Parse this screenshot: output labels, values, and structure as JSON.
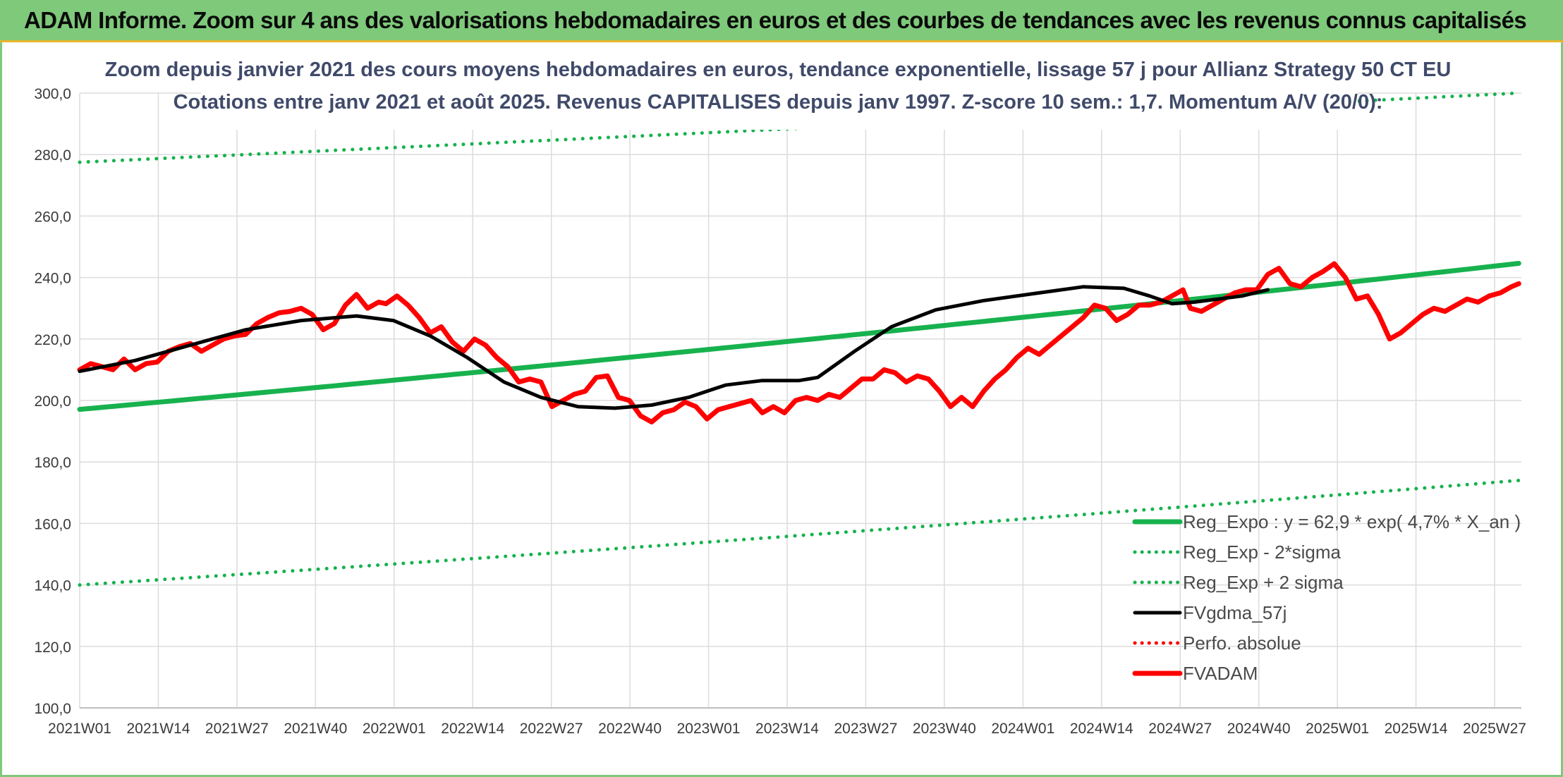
{
  "banner": {
    "title": "ADAM Informe. Zoom sur 4 ans des valorisations hebdomadaires en euros et des courbes de tendances avec les revenus connus capitalisés"
  },
  "chart_data": {
    "type": "line",
    "title": "Zoom depuis janvier 2021 des cours moyens hebdomadaires en euros, tendance exponentielle, lissage 57 j pour Allianz Strategy 50 CT EU",
    "subtitle": "Cotations entre janv 2021 et août 2025. Revenus CAPITALISES depuis janv 1997. Z-score 10 sem.: 1,7. Momentum A/V (20/0):",
    "xlabel": "",
    "ylabel": "",
    "ylim": [
      100,
      300
    ],
    "y_ticks": [
      "100,0",
      "120,0",
      "140,0",
      "160,0",
      "180,0",
      "200,0",
      "220,0",
      "240,0",
      "260,0",
      "280,0",
      "300,0"
    ],
    "x_ticks": [
      "2021W01",
      "2021W14",
      "2021W27",
      "2021W40",
      "2022W01",
      "2022W14",
      "2022W27",
      "2022W40",
      "2023W01",
      "2023W14",
      "2023W27",
      "2023W40",
      "2024W01",
      "2024W14",
      "2024W27",
      "2024W40",
      "2025W01",
      "2025W14",
      "2025W27"
    ],
    "weeks": 240,
    "grid": true,
    "legend_position": "bottom-right",
    "series": [
      {
        "name": "Reg_Expo : y = 62,9 * exp( 4,7% *  X_an )",
        "color": "#17b24e",
        "style": "solid-thick",
        "start": 197.1,
        "end": 244.6
      },
      {
        "name": "Reg_Exp - 2*sigma",
        "color": "#17b24e",
        "style": "dotted",
        "start": 140.0,
        "end": 174.0
      },
      {
        "name": "Reg_Exp + 2 sigma",
        "color": "#17b24e",
        "style": "dotted",
        "start": 277.5,
        "end": 300.0
      },
      {
        "name": "FVgdma_57j",
        "color": "#000000",
        "style": "solid",
        "keypoints": [
          [
            0,
            209.5
          ],
          [
            15,
            213
          ],
          [
            30,
            218
          ],
          [
            45,
            223
          ],
          [
            60,
            226
          ],
          [
            75,
            227.5
          ],
          [
            85,
            226
          ],
          [
            95,
            221
          ],
          [
            105,
            214
          ],
          [
            115,
            206
          ],
          [
            125,
            201
          ],
          [
            135,
            198
          ],
          [
            145,
            197.5
          ],
          [
            155,
            198.5
          ],
          [
            165,
            201
          ],
          [
            175,
            205
          ],
          [
            185,
            206.5
          ],
          [
            195,
            206.5
          ],
          [
            200,
            207.5
          ],
          [
            210,
            216
          ],
          [
            220,
            224
          ],
          [
            232,
            229.5
          ],
          [
            245,
            232.5
          ],
          [
            260,
            235
          ],
          [
            272,
            237
          ],
          [
            283,
            236.5
          ],
          [
            290,
            234
          ],
          [
            296,
            231.5
          ],
          [
            302,
            232
          ],
          [
            315,
            234
          ],
          [
            322,
            236
          ]
        ]
      },
      {
        "name": "Perfo. absolue",
        "color": "#ff0000",
        "style": "dotted",
        "keypoints": []
      },
      {
        "name": "FVADAM",
        "color": "#ff0000",
        "style": "solid-thick",
        "keypoints": [
          [
            0,
            210
          ],
          [
            3,
            212
          ],
          [
            6,
            211
          ],
          [
            9,
            210
          ],
          [
            12,
            213.5
          ],
          [
            15,
            210
          ],
          [
            18,
            212
          ],
          [
            21,
            212.5
          ],
          [
            24,
            216
          ],
          [
            27,
            217.5
          ],
          [
            30,
            218.5
          ],
          [
            33,
            216
          ],
          [
            36,
            218
          ],
          [
            39,
            220
          ],
          [
            42,
            221
          ],
          [
            45,
            221.5
          ],
          [
            48,
            225
          ],
          [
            51,
            227
          ],
          [
            54,
            228.5
          ],
          [
            57,
            229
          ],
          [
            60,
            230
          ],
          [
            63,
            228
          ],
          [
            66,
            223
          ],
          [
            69,
            225
          ],
          [
            72,
            231
          ],
          [
            75,
            234.5
          ],
          [
            78,
            230
          ],
          [
            81,
            232
          ],
          [
            83,
            231.5
          ],
          [
            86,
            234
          ],
          [
            89,
            231
          ],
          [
            92,
            227
          ],
          [
            95,
            222
          ],
          [
            98,
            224
          ],
          [
            101,
            219
          ],
          [
            104,
            216
          ],
          [
            107,
            220
          ],
          [
            110,
            218
          ],
          [
            113,
            214
          ],
          [
            116,
            211
          ],
          [
            119,
            206
          ],
          [
            122,
            207
          ],
          [
            125,
            206
          ],
          [
            128,
            198
          ],
          [
            131,
            200
          ],
          [
            134,
            202
          ],
          [
            137,
            203
          ],
          [
            140,
            207.5
          ],
          [
            143,
            208
          ],
          [
            146,
            201
          ],
          [
            149,
            200
          ],
          [
            152,
            195
          ],
          [
            155,
            193
          ],
          [
            158,
            196
          ],
          [
            161,
            197
          ],
          [
            164,
            199.5
          ],
          [
            167,
            198
          ],
          [
            170,
            194
          ],
          [
            173,
            197
          ],
          [
            176,
            198
          ],
          [
            179,
            199
          ],
          [
            182,
            200
          ],
          [
            185,
            196
          ],
          [
            188,
            198
          ],
          [
            191,
            196
          ],
          [
            194,
            200
          ],
          [
            197,
            201
          ],
          [
            200,
            200
          ],
          [
            203,
            202
          ],
          [
            206,
            201
          ],
          [
            209,
            204
          ],
          [
            212,
            207
          ],
          [
            215,
            207
          ],
          [
            218,
            210
          ],
          [
            221,
            209
          ],
          [
            224,
            206
          ],
          [
            227,
            208
          ],
          [
            230,
            207
          ],
          [
            233,
            203
          ],
          [
            236,
            198
          ],
          [
            239,
            201
          ],
          [
            242,
            198
          ],
          [
            245,
            203
          ],
          [
            248,
            207
          ],
          [
            251,
            210
          ],
          [
            254,
            214
          ],
          [
            257,
            217
          ],
          [
            260,
            215
          ],
          [
            263,
            218
          ],
          [
            266,
            221
          ],
          [
            269,
            224
          ],
          [
            272,
            227
          ],
          [
            275,
            231
          ],
          [
            278,
            230
          ],
          [
            281,
            226
          ],
          [
            284,
            228
          ],
          [
            287,
            231
          ],
          [
            290,
            231
          ],
          [
            293,
            232
          ],
          [
            296,
            234
          ],
          [
            299,
            236
          ],
          [
            301,
            230
          ],
          [
            304,
            229
          ],
          [
            307,
            231
          ],
          [
            310,
            233
          ],
          [
            313,
            235
          ],
          [
            316,
            236
          ],
          [
            319,
            236
          ],
          [
            322,
            241
          ],
          [
            325,
            243
          ],
          [
            328,
            238
          ],
          [
            331,
            237
          ],
          [
            334,
            240
          ],
          [
            337,
            242
          ],
          [
            340,
            244.5
          ],
          [
            343,
            240
          ],
          [
            346,
            233
          ],
          [
            349,
            234
          ],
          [
            352,
            228
          ],
          [
            355,
            220
          ],
          [
            358,
            222
          ],
          [
            361,
            225
          ],
          [
            364,
            228
          ],
          [
            367,
            230
          ],
          [
            370,
            229
          ],
          [
            373,
            231
          ],
          [
            376,
            233
          ],
          [
            379,
            232
          ],
          [
            382,
            234
          ],
          [
            385,
            235
          ],
          [
            388,
            237
          ],
          [
            390,
            238
          ]
        ]
      }
    ]
  }
}
